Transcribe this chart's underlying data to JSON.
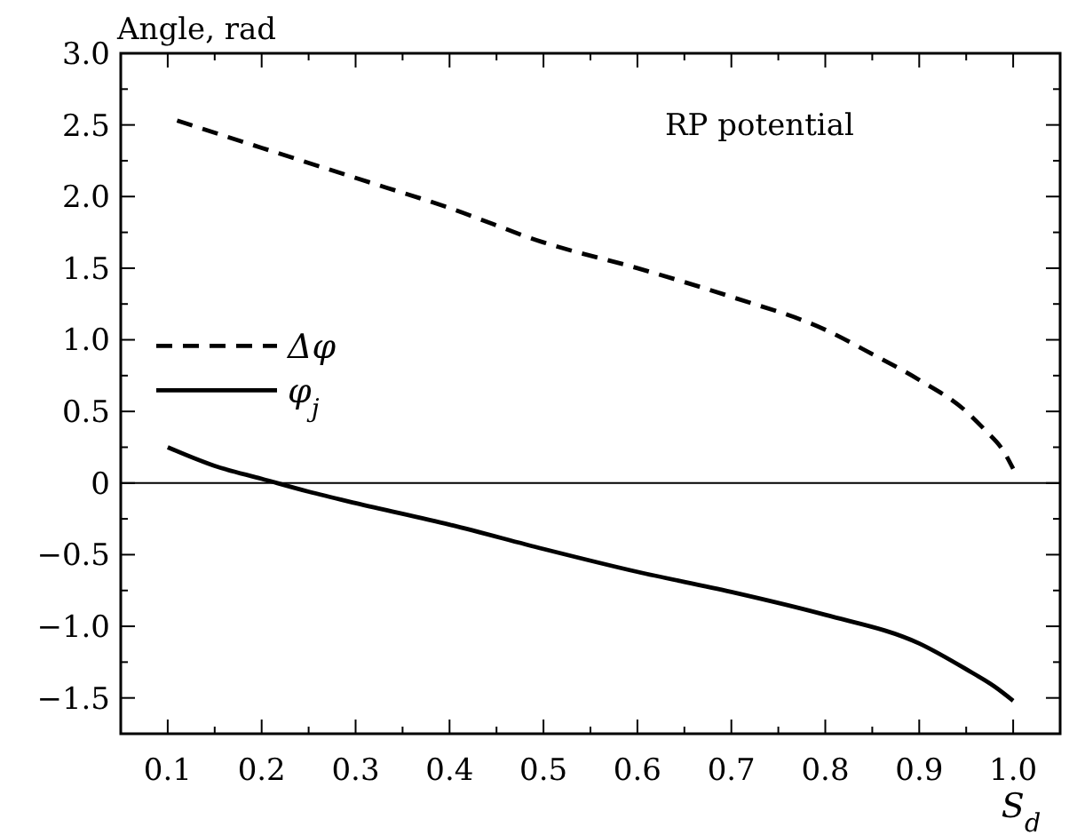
{
  "chart_data": {
    "type": "line",
    "ylabel": "Angle, rad",
    "xlabel": "S$_{d}$",
    "annotations": [
      "RP potential"
    ],
    "xlim": [
      0.05,
      1.05
    ],
    "xticks": [
      0.1,
      {
        "value": 0.2,
        "label": "0.2"
      },
      0.3,
      0.4,
      0.5,
      0.6,
      0.7,
      0.8,
      0.9,
      {
        "value": 1,
        "label": "1.0"
      }
    ],
    "ylim": [
      -1.75,
      3.0
    ],
    "yticks": [
      {
        "value": -1.5,
        "label": "−1.5"
      },
      {
        "value": -1,
        "label": "−1.0"
      },
      {
        "value": -0.5,
        "label": "−0.5"
      },
      0,
      0.5,
      {
        "value": 1,
        "label": "1.0"
      },
      1.5,
      {
        "value": 2,
        "label": "2.0"
      },
      2.5,
      {
        "value": 3,
        "label": "3.0"
      }
    ],
    "legend": "left",
    "grid": false,
    "ref_lines": [
      {
        "axis": "y",
        "value": 0,
        "color": "#000000"
      }
    ],
    "series": [
      {
        "name": "Δφ",
        "color": "#000000",
        "line_style": "dashed",
        "x": [
          0.11,
          0.2,
          0.3,
          0.4,
          0.5,
          0.6,
          0.7,
          0.8,
          0.85,
          0.9,
          0.95,
          0.97,
          0.99,
          1.0
        ],
        "values": [
          2.53,
          2.34,
          2.13,
          1.92,
          1.68,
          1.5,
          1.3,
          1.07,
          0.9,
          0.72,
          0.5,
          0.37,
          0.22,
          0.1
        ]
      },
      {
        "name": "φ$_{j}$",
        "color": "#000000",
        "line_style": "solid",
        "x": [
          0.1,
          0.15,
          0.2,
          0.25,
          0.3,
          0.4,
          0.5,
          0.6,
          0.7,
          0.8,
          0.9,
          0.95,
          0.98,
          1.0
        ],
        "values": [
          0.25,
          0.12,
          0.03,
          -0.06,
          -0.14,
          -0.29,
          -0.46,
          -0.62,
          -0.76,
          -0.92,
          -1.12,
          -1.3,
          -1.42,
          -1.52
        ]
      }
    ]
  }
}
